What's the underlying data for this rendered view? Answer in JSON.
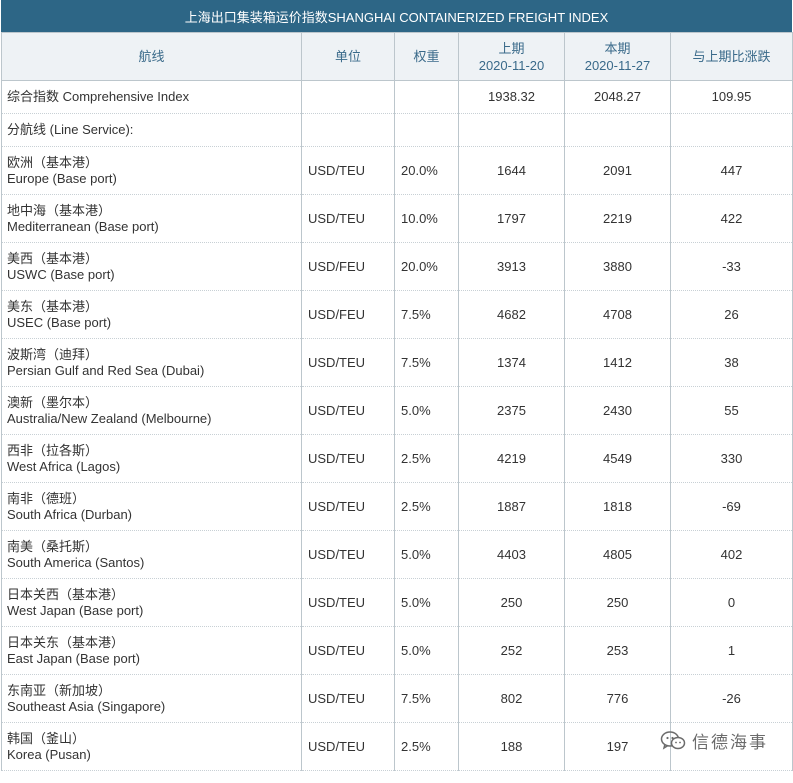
{
  "title": "上海出口集装箱运价指数SHANGHAI CONTAINERIZED FREIGHT INDEX",
  "headers": {
    "route": "航线",
    "unit": "单位",
    "weight": "权重",
    "prev": "上期",
    "prev_date": "2020-11-20",
    "curr": "本期",
    "curr_date": "2020-11-27",
    "change": "与上期比涨跌"
  },
  "comprehensive": {
    "label": "综合指数 Comprehensive Index",
    "prev": "1938.32",
    "curr": "2048.27",
    "change": "109.95"
  },
  "line_service_label": "分航线 (Line Service):",
  "rows": [
    {
      "cn": "欧洲（基本港）",
      "en": "Europe (Base port)",
      "unit": "USD/TEU",
      "weight": "20.0%",
      "prev": "1644",
      "curr": "2091",
      "change": "447"
    },
    {
      "cn": "地中海（基本港）",
      "en": "Mediterranean (Base port)",
      "unit": "USD/TEU",
      "weight": "10.0%",
      "prev": "1797",
      "curr": "2219",
      "change": "422"
    },
    {
      "cn": "美西（基本港）",
      "en": "USWC (Base port)",
      "unit": "USD/FEU",
      "weight": "20.0%",
      "prev": "3913",
      "curr": "3880",
      "change": "-33"
    },
    {
      "cn": "美东（基本港）",
      "en": "USEC (Base port)",
      "unit": "USD/FEU",
      "weight": "7.5%",
      "prev": "4682",
      "curr": "4708",
      "change": "26"
    },
    {
      "cn": "波斯湾（迪拜）",
      "en": "Persian Gulf and Red Sea (Dubai)",
      "unit": "USD/TEU",
      "weight": "7.5%",
      "prev": "1374",
      "curr": "1412",
      "change": "38"
    },
    {
      "cn": "澳新（墨尔本）",
      "en": "Australia/New Zealand (Melbourne)",
      "unit": "USD/TEU",
      "weight": "5.0%",
      "prev": "2375",
      "curr": "2430",
      "change": "55"
    },
    {
      "cn": "西非（拉各斯）",
      "en": "West Africa (Lagos)",
      "unit": "USD/TEU",
      "weight": "2.5%",
      "prev": "4219",
      "curr": "4549",
      "change": "330"
    },
    {
      "cn": "南非（德班）",
      "en": "South Africa (Durban)",
      "unit": "USD/TEU",
      "weight": "2.5%",
      "prev": "1887",
      "curr": "1818",
      "change": "-69"
    },
    {
      "cn": "南美（桑托斯）",
      "en": "South America (Santos)",
      "unit": "USD/TEU",
      "weight": "5.0%",
      "prev": "4403",
      "curr": "4805",
      "change": "402"
    },
    {
      "cn": "日本关西（基本港）",
      "en": "West Japan (Base port)",
      "unit": "USD/TEU",
      "weight": "5.0%",
      "prev": "250",
      "curr": "250",
      "change": "0"
    },
    {
      "cn": "日本关东（基本港）",
      "en": "East Japan (Base port)",
      "unit": "USD/TEU",
      "weight": "5.0%",
      "prev": "252",
      "curr": "253",
      "change": "1"
    },
    {
      "cn": "东南亚（新加坡）",
      "en": "Southeast Asia (Singapore)",
      "unit": "USD/TEU",
      "weight": "7.5%",
      "prev": "802",
      "curr": "776",
      "change": "-26"
    },
    {
      "cn": "韩国（釜山）",
      "en": "Korea (Pusan)",
      "unit": "USD/TEU",
      "weight": "2.5%",
      "prev": "188",
      "curr": "197",
      "change": ""
    }
  ],
  "watermark": {
    "icon": "wechat-icon",
    "text": "信德海事"
  }
}
